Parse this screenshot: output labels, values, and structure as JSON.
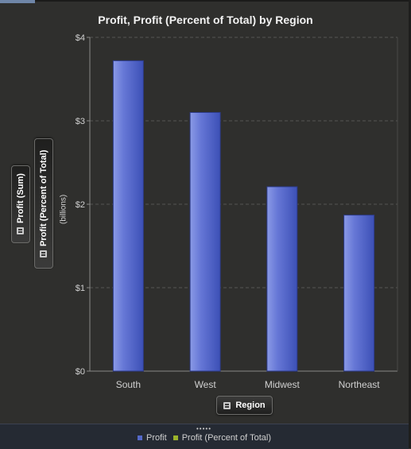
{
  "chart_data": {
    "type": "bar",
    "title": "Profit, Profit (Percent of Total) by Region",
    "categories": [
      "South",
      "West",
      "Midwest",
      "Northeast"
    ],
    "series": [
      {
        "name": "Profit",
        "values": [
          3.72,
          3.1,
          2.21,
          1.87
        ]
      }
    ],
    "ylim": [
      0,
      4
    ],
    "y_ticks": [
      "$0",
      "$1",
      "$2",
      "$3",
      "$4"
    ],
    "y_tick_values": [
      0,
      1,
      2,
      3,
      4
    ],
    "ylabel_units": "(billions)",
    "grid": true,
    "legend": [
      "Profit",
      "Profit (Percent of Total)"
    ],
    "legend_placement": "bottom"
  },
  "axis_roles": {
    "y_primary": "Profit (Sum)",
    "y_secondary": "Profit (Percent of Total)",
    "x": "Region"
  },
  "legend_grip": "•••••",
  "colors": {
    "bar": "#4a5fc4",
    "bar_highlight": "#8a9ae6",
    "legend_profit": "#5468c8",
    "legend_percent": "#9bb32b",
    "plot_bg": "#2f2f2d",
    "grid": "#555553",
    "legend_bg": "#252a33"
  }
}
